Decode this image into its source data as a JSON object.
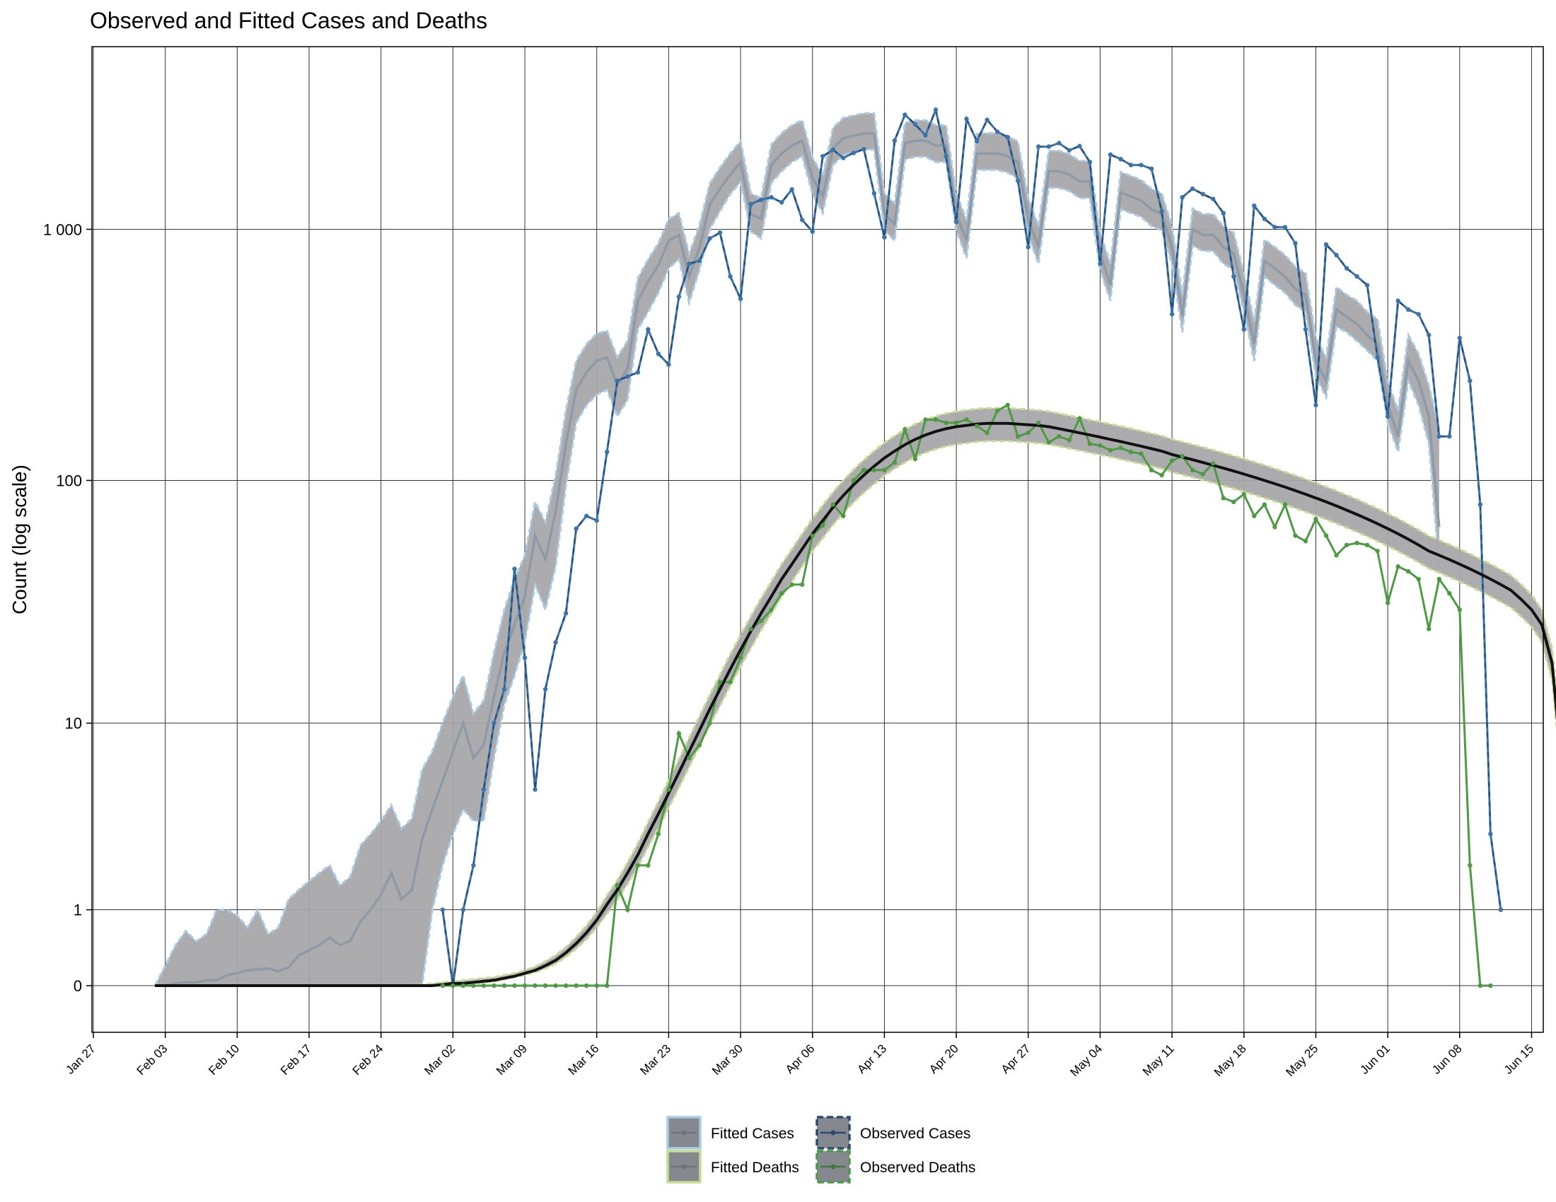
{
  "chart_data": {
    "type": "line",
    "title": "Observed and Fitted Cases and Deaths",
    "xlabel": "",
    "ylabel": "Count (log scale)",
    "y_scale": "log1p",
    "grid": true,
    "legend_position": "bottom",
    "x_range": [
      "2020-01-27",
      "2020-06-16"
    ],
    "y_ticks": [
      {
        "value": 0,
        "label": "0"
      },
      {
        "value": 1,
        "label": "1"
      },
      {
        "value": 10,
        "label": "10"
      },
      {
        "value": 100,
        "label": "100"
      },
      {
        "value": 1000,
        "label": "1 000"
      }
    ],
    "x_ticks": [
      {
        "date": "2020-01-27",
        "label": "Jan 27"
      },
      {
        "date": "2020-02-03",
        "label": "Feb 03"
      },
      {
        "date": "2020-02-10",
        "label": "Feb 10"
      },
      {
        "date": "2020-02-17",
        "label": "Feb 17"
      },
      {
        "date": "2020-02-24",
        "label": "Feb 24"
      },
      {
        "date": "2020-03-02",
        "label": "Mar 02"
      },
      {
        "date": "2020-03-09",
        "label": "Mar 09"
      },
      {
        "date": "2020-03-16",
        "label": "Mar 16"
      },
      {
        "date": "2020-03-23",
        "label": "Mar 23"
      },
      {
        "date": "2020-03-30",
        "label": "Mar 30"
      },
      {
        "date": "2020-04-06",
        "label": "Apr 06"
      },
      {
        "date": "2020-04-13",
        "label": "Apr 13"
      },
      {
        "date": "2020-04-20",
        "label": "Apr 20"
      },
      {
        "date": "2020-04-27",
        "label": "Apr 27"
      },
      {
        "date": "2020-05-04",
        "label": "May 04"
      },
      {
        "date": "2020-05-11",
        "label": "May 11"
      },
      {
        "date": "2020-05-18",
        "label": "May 18"
      },
      {
        "date": "2020-05-25",
        "label": "May 25"
      },
      {
        "date": "2020-06-01",
        "label": "Jun 01"
      },
      {
        "date": "2020-06-08",
        "label": "Jun 08"
      },
      {
        "date": "2020-06-15",
        "label": "Jun 15"
      }
    ],
    "legend": [
      {
        "key": "fitted_cases",
        "label": "Fitted Cases"
      },
      {
        "key": "observed_cases",
        "label": "Observed Cases"
      },
      {
        "key": "fitted_deaths",
        "label": "Fitted Deaths"
      },
      {
        "key": "observed_deaths",
        "label": "Observed Deaths"
      }
    ],
    "colors": {
      "band_fill": "#a8a6aa",
      "cases_band_edge": "#a9cbe4",
      "deaths_band_edge": "#c5dd92",
      "fitted_cases_line": "#8e9aa5",
      "observed_cases": "#3a74aa",
      "observed_cases_dash": "#2a4b70",
      "observed_deaths": "#4d9a43",
      "fitted_deaths_line": "#111111",
      "legend_swatch": "#85898f"
    },
    "series": [
      {
        "name": "Fitted Cases",
        "key": "fitted_cases",
        "start_date": "2020-02-02",
        "median": [
          0,
          0,
          0.02,
          0.03,
          0.03,
          0.05,
          0.05,
          0.1,
          0.12,
          0.15,
          0.16,
          0.17,
          0.14,
          0.18,
          0.32,
          0.38,
          0.45,
          0.55,
          0.45,
          0.5,
          0.8,
          1,
          1.3,
          1.8,
          1.2,
          1.4,
          2.8,
          4,
          5.5,
          7.5,
          10,
          7,
          8,
          13,
          20,
          26,
          34,
          60,
          48,
          75,
          140,
          230,
          270,
          300,
          310,
          240,
          280,
          520,
          620,
          720,
          900,
          950,
          650,
          850,
          1250,
          1450,
          1650,
          1850,
          1150,
          1100,
          1800,
          2000,
          2150,
          2250,
          1600,
          1350,
          2100,
          2300,
          2350,
          2400,
          2400,
          1150,
          1050,
          2200,
          2250,
          2250,
          2150,
          2150,
          1150,
          900,
          2000,
          2000,
          2000,
          1950,
          1850,
          1100,
          850,
          1700,
          1700,
          1650,
          1550,
          1550,
          800,
          600,
          1400,
          1350,
          1300,
          1200,
          1150,
          850,
          450,
          1000,
          950,
          950,
          850,
          800,
          550,
          350,
          750,
          700,
          650,
          580,
          550,
          300,
          250,
          480,
          450,
          420,
          380,
          350,
          200,
          150,
          300,
          250,
          180,
          65
        ],
        "low": [
          0,
          0,
          0,
          0,
          0,
          0,
          0,
          0,
          0,
          0,
          0,
          0,
          0,
          0,
          0,
          0,
          0,
          0,
          0,
          0,
          0,
          0,
          0,
          0,
          0,
          0,
          0,
          1,
          2,
          3,
          4,
          3.5,
          3.5,
          7,
          12,
          16,
          22,
          38,
          30,
          45,
          95,
          170,
          200,
          220,
          230,
          180,
          210,
          400,
          470,
          560,
          700,
          760,
          510,
          690,
          1000,
          1180,
          1380,
          1540,
          980,
          920,
          1530,
          1700,
          1850,
          1950,
          1380,
          1160,
          1800,
          1970,
          2020,
          2070,
          2070,
          990,
          900,
          1890,
          1940,
          1940,
          1850,
          1850,
          990,
          770,
          1720,
          1720,
          1720,
          1680,
          1590,
          950,
          730,
          1460,
          1460,
          1420,
          1330,
          1330,
          690,
          520,
          1200,
          1160,
          1120,
          1030,
          990,
          730,
          390,
          860,
          820,
          820,
          730,
          690,
          470,
          300,
          650,
          600,
          560,
          500,
          470,
          260,
          215,
          410,
          390,
          360,
          330,
          300,
          170,
          130,
          250,
          200,
          140,
          45
        ],
        "high": [
          0,
          0.2,
          0.45,
          0.65,
          0.5,
          0.6,
          1,
          1,
          0.9,
          0.7,
          1,
          0.6,
          0.7,
          1.2,
          1.4,
          1.6,
          1.8,
          2,
          1.5,
          1.7,
          2.6,
          3,
          3.5,
          4.2,
          3.2,
          3.6,
          6.2,
          7.5,
          10,
          13,
          16,
          11,
          12.5,
          20,
          30,
          40,
          50,
          82,
          68,
          105,
          190,
          300,
          350,
          385,
          395,
          310,
          360,
          640,
          760,
          880,
          1100,
          1160,
          800,
          1040,
          1520,
          1760,
          2000,
          2240,
          1390,
          1330,
          2170,
          2410,
          2590,
          2710,
          1930,
          1630,
          2530,
          2770,
          2830,
          2890,
          2890,
          1390,
          1270,
          2650,
          2710,
          2710,
          2590,
          2590,
          1390,
          1090,
          2410,
          2410,
          2410,
          2350,
          2230,
          1330,
          1030,
          2050,
          2050,
          1990,
          1870,
          1870,
          970,
          730,
          1690,
          1630,
          1570,
          1450,
          1390,
          1030,
          550,
          1210,
          1150,
          1150,
          1030,
          970,
          670,
          430,
          910,
          850,
          790,
          710,
          670,
          370,
          310,
          590,
          550,
          520,
          470,
          440,
          250,
          190,
          380,
          320,
          240,
          160
        ]
      },
      {
        "name": "Observed Cases",
        "key": "observed_cases",
        "start_date": "2020-03-01",
        "values": [
          1,
          0,
          1,
          2,
          5,
          10,
          14,
          44,
          19,
          5,
          14,
          22,
          29,
          64,
          72,
          69,
          130,
          250,
          260,
          270,
          400,
          320,
          290,
          540,
          730,
          750,
          920,
          970,
          650,
          530,
          1260,
          1310,
          1340,
          1280,
          1440,
          1090,
          980,
          1950,
          2070,
          1920,
          2010,
          2080,
          1390,
          930,
          2250,
          2850,
          2610,
          2360,
          2980,
          1950,
          1070,
          2740,
          2240,
          2720,
          2440,
          2320,
          1560,
          850,
          2130,
          2130,
          2200,
          2060,
          2140,
          1850,
          730,
          1980,
          1900,
          1800,
          1800,
          1740,
          1180,
          460,
          1340,
          1450,
          1380,
          1320,
          1160,
          650,
          400,
          1240,
          1100,
          1020,
          1020,
          880,
          400,
          200,
          870,
          790,
          700,
          650,
          600,
          310,
          180,
          520,
          480,
          460,
          380,
          150,
          150,
          370,
          250,
          80,
          3,
          1
        ]
      },
      {
        "name": "Fitted Deaths",
        "key": "fitted_deaths",
        "start_date": "2020-02-02",
        "median": [
          0,
          0,
          0,
          0,
          0,
          0,
          0,
          0,
          0,
          0,
          0,
          0,
          0,
          0,
          0,
          0,
          0,
          0,
          0,
          0,
          0,
          0,
          0,
          0,
          0,
          0,
          0,
          0,
          0.01,
          0.02,
          0.02,
          0.03,
          0.04,
          0.05,
          0.07,
          0.09,
          0.12,
          0.15,
          0.2,
          0.26,
          0.35,
          0.47,
          0.62,
          0.82,
          1.1,
          1.4,
          1.8,
          2.3,
          3,
          3.8,
          4.8,
          6,
          7.5,
          9.3,
          11.5,
          14,
          17,
          20.5,
          24.5,
          29,
          34,
          40,
          46,
          53,
          61,
          69,
          78,
          87,
          96,
          105,
          114,
          123,
          131,
          139,
          146,
          152,
          157,
          161,
          164,
          166,
          168,
          169,
          169,
          169,
          168,
          167,
          166,
          164,
          161,
          158,
          155,
          152,
          149,
          146,
          143,
          140,
          137,
          134,
          131,
          127,
          124,
          121,
          118,
          115,
          112,
          109,
          106,
          103,
          100,
          97,
          94,
          91,
          88,
          85,
          82,
          79,
          76,
          73,
          70,
          67,
          64,
          61,
          58,
          55,
          52,
          50,
          48,
          46,
          44,
          42,
          40,
          38,
          36,
          33,
          30,
          26,
          18,
          6
        ],
        "low": [
          0,
          0,
          0,
          0,
          0,
          0,
          0,
          0,
          0,
          0,
          0,
          0,
          0,
          0,
          0,
          0,
          0,
          0,
          0,
          0,
          0,
          0,
          0,
          0,
          0,
          0,
          0,
          0,
          0,
          0.01,
          0.01,
          0.02,
          0.03,
          0.04,
          0.06,
          0.08,
          0.1,
          0.13,
          0.17,
          0.22,
          0.3,
          0.4,
          0.53,
          0.7,
          0.93,
          1.2,
          1.53,
          1.96,
          2.55,
          3.23,
          4.08,
          5.1,
          6.38,
          7.91,
          9.78,
          11.9,
          14.5,
          17.4,
          20.8,
          24.7,
          28.9,
          34,
          39.1,
          45.1,
          51.9,
          58.7,
          66.3,
          74,
          81.6,
          89.3,
          96.9,
          104.6,
          111.4,
          118.2,
          124.1,
          129.2,
          133.5,
          136.9,
          139.4,
          141.1,
          142.8,
          143.7,
          143.7,
          143.7,
          142.8,
          142,
          141.1,
          139.4,
          136.9,
          134.3,
          131.8,
          129.2,
          126.7,
          124.1,
          121.6,
          119,
          116.5,
          113.9,
          111.4,
          108,
          105.4,
          102.9,
          100.3,
          97.8,
          95.2,
          92.7,
          90.1,
          87.6,
          85,
          82.5,
          79.9,
          77.4,
          74.8,
          72.3,
          69.7,
          67.2,
          64.6,
          62.1,
          59.5,
          57,
          54.4,
          51.9,
          49.3,
          46.8,
          44.2,
          42.5,
          40.8,
          39.1,
          37.4,
          35.7,
          34,
          32.3,
          30.6,
          28.1,
          25.5,
          22.1,
          15.3,
          5.1
        ],
        "high": [
          0,
          0,
          0,
          0,
          0,
          0,
          0,
          0,
          0,
          0,
          0,
          0,
          0,
          0,
          0,
          0,
          0,
          0,
          0,
          0,
          0,
          0,
          0,
          0,
          0,
          0,
          0.01,
          0.02,
          0.03,
          0.04,
          0.05,
          0.06,
          0.07,
          0.08,
          0.1,
          0.12,
          0.15,
          0.19,
          0.25,
          0.32,
          0.42,
          0.56,
          0.73,
          0.96,
          1.28,
          1.62,
          2.08,
          2.66,
          3.45,
          4.37,
          5.52,
          6.9,
          8.63,
          10.7,
          13.2,
          16.1,
          19.6,
          23.6,
          28.2,
          33.4,
          39.1,
          46,
          52.9,
          61,
          70.2,
          79.4,
          89.7,
          100,
          110.4,
          120.8,
          131.1,
          141.5,
          150.7,
          159.9,
          167.9,
          174.8,
          180.6,
          185.2,
          188.6,
          190.9,
          193.2,
          194.4,
          194.4,
          194.4,
          193.2,
          192.1,
          190.9,
          188.6,
          185.2,
          181.7,
          178.3,
          174.8,
          171.4,
          167.9,
          164.5,
          161,
          157.6,
          154.1,
          150.7,
          146.1,
          142.6,
          139.2,
          135.7,
          132.3,
          128.8,
          125.4,
          121.9,
          118.5,
          115,
          111.6,
          108.1,
          104.7,
          101.2,
          97.8,
          94.3,
          90.9,
          87.4,
          84,
          80.5,
          77.1,
          73.6,
          70.2,
          66.7,
          63.3,
          59.8,
          57.5,
          55.2,
          52.9,
          50.6,
          48.3,
          46,
          43.7,
          41.4,
          38,
          34.5,
          29.9,
          20.7,
          6.9
        ]
      },
      {
        "name": "Observed Deaths",
        "key": "observed_deaths",
        "start_date": "2020-03-01",
        "values": [
          0,
          0,
          0,
          0,
          0,
          0,
          0,
          0,
          0,
          0,
          0,
          0,
          0,
          0,
          0,
          0,
          0,
          1.5,
          1,
          2,
          2,
          3,
          5,
          9,
          7,
          8,
          10,
          15,
          15,
          19,
          25,
          27,
          30,
          35,
          38,
          38,
          60,
          66,
          80,
          72,
          100,
          110,
          110,
          110,
          118,
          160,
          122,
          175,
          175,
          170,
          170,
          175,
          165,
          155,
          190,
          200,
          150,
          155,
          170,
          142,
          150,
          145,
          177,
          140,
          138,
          132,
          135,
          130,
          128,
          110,
          105,
          120,
          125,
          110,
          106,
          117,
          85,
          82,
          88,
          72,
          80,
          65,
          80,
          60,
          57,
          70,
          60,
          50,
          55,
          56,
          55,
          52,
          32,
          45,
          43,
          40,
          25,
          40,
          35,
          30,
          2,
          0,
          0
        ]
      }
    ]
  }
}
